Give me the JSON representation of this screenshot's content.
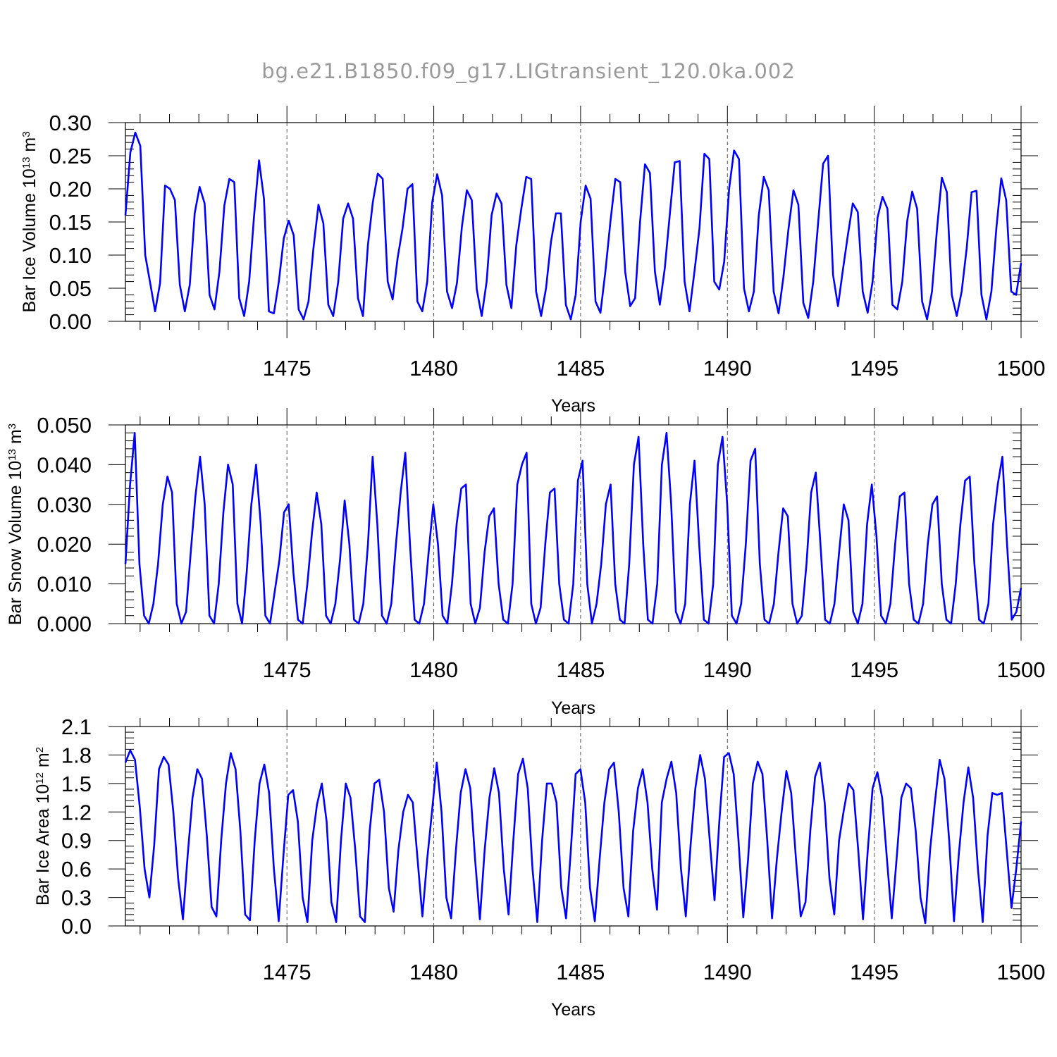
{
  "figure": {
    "title": "bg.e21.B1850.f09_g17.LIGtransient_120.0ka.002"
  },
  "chart_data": [
    {
      "type": "line",
      "title": "",
      "xlabel": "Years",
      "ylabel_text": "Bar Ice Volume 10",
      "ylabel_exp": "13",
      "ylabel_unit": " m",
      "ylabel_unit_exp": "3",
      "xlim": [
        1469.5,
        1500
      ],
      "ylim": [
        0.0,
        0.3
      ],
      "xticks": [
        1475,
        1480,
        1485,
        1490,
        1495,
        1500
      ],
      "xtick_labels": [
        "1475",
        "1480",
        "1485",
        "1490",
        "1495",
        "1500"
      ],
      "yticks": [
        0.0,
        0.05,
        0.1,
        0.15,
        0.2,
        0.25,
        0.3
      ],
      "ytick_labels": [
        "0.00",
        "0.05",
        "0.10",
        "0.15",
        "0.20",
        "0.25",
        "0.30"
      ],
      "grid": "vertical dashed at 5-year ticks",
      "series_color": "#0000ff",
      "series": [
        {
          "values": [
            0.16,
            0.255,
            0.285,
            0.265,
            0.1,
            0.058,
            0.015,
            0.058,
            0.205,
            0.2,
            0.183,
            0.055,
            0.015,
            0.055,
            0.163,
            0.203,
            0.178,
            0.04,
            0.018,
            0.075,
            0.175,
            0.215,
            0.21,
            0.035,
            0.008,
            0.06,
            0.16,
            0.243,
            0.185,
            0.015,
            0.012,
            0.06,
            0.125,
            0.152,
            0.13,
            0.018,
            0.003,
            0.03,
            0.11,
            0.176,
            0.148,
            0.025,
            0.008,
            0.06,
            0.155,
            0.178,
            0.155,
            0.035,
            0.008,
            0.115,
            0.18,
            0.223,
            0.215,
            0.06,
            0.033,
            0.095,
            0.14,
            0.2,
            0.207,
            0.03,
            0.015,
            0.06,
            0.18,
            0.222,
            0.19,
            0.045,
            0.02,
            0.058,
            0.143,
            0.198,
            0.183,
            0.048,
            0.008,
            0.06,
            0.16,
            0.193,
            0.178,
            0.055,
            0.02,
            0.115,
            0.17,
            0.218,
            0.215,
            0.045,
            0.008,
            0.05,
            0.12,
            0.163,
            0.163,
            0.025,
            0.003,
            0.04,
            0.15,
            0.205,
            0.185,
            0.03,
            0.013,
            0.075,
            0.15,
            0.215,
            0.21,
            0.075,
            0.023,
            0.035,
            0.15,
            0.237,
            0.224,
            0.075,
            0.025,
            0.08,
            0.16,
            0.24,
            0.242,
            0.06,
            0.015,
            0.075,
            0.14,
            0.253,
            0.245,
            0.06,
            0.048,
            0.09,
            0.2,
            0.258,
            0.245,
            0.05,
            0.015,
            0.045,
            0.16,
            0.218,
            0.198,
            0.045,
            0.012,
            0.068,
            0.14,
            0.198,
            0.176,
            0.028,
            0.005,
            0.06,
            0.15,
            0.238,
            0.25,
            0.07,
            0.023,
            0.078,
            0.13,
            0.178,
            0.165,
            0.045,
            0.013,
            0.06,
            0.157,
            0.188,
            0.17,
            0.025,
            0.018,
            0.06,
            0.152,
            0.196,
            0.17,
            0.03,
            0.003,
            0.045,
            0.138,
            0.217,
            0.195,
            0.04,
            0.008,
            0.045,
            0.11,
            0.195,
            0.197,
            0.04,
            0.003,
            0.045,
            0.14,
            0.216,
            0.183,
            0.045,
            0.04,
            0.088
          ]
        }
      ]
    },
    {
      "type": "line",
      "title": "",
      "xlabel": "Years",
      "ylabel_text": "Bar Snow Volume 10",
      "ylabel_exp": "13",
      "ylabel_unit": " m",
      "ylabel_unit_exp": "3",
      "xlim": [
        1469.5,
        1500
      ],
      "ylim": [
        0.0,
        0.05
      ],
      "xticks": [
        1475,
        1480,
        1485,
        1490,
        1495,
        1500
      ],
      "xtick_labels": [
        "1475",
        "1480",
        "1485",
        "1490",
        "1495",
        "1500"
      ],
      "yticks": [
        0.0,
        0.01,
        0.02,
        0.03,
        0.04,
        0.05
      ],
      "ytick_labels": [
        "0.000",
        "0.010",
        "0.020",
        "0.030",
        "0.040",
        "0.050"
      ],
      "grid": "vertical dashed at 5-year ticks",
      "series_color": "#0000ff",
      "series": [
        {
          "values": [
            0.015,
            0.035,
            0.048,
            0.015,
            0.002,
            0.0,
            0.005,
            0.015,
            0.03,
            0.037,
            0.033,
            0.005,
            0.0,
            0.003,
            0.018,
            0.032,
            0.042,
            0.03,
            0.002,
            0.0,
            0.01,
            0.028,
            0.04,
            0.035,
            0.005,
            0.0,
            0.013,
            0.03,
            0.04,
            0.025,
            0.002,
            0.0,
            0.008,
            0.016,
            0.028,
            0.03,
            0.013,
            0.001,
            0.0,
            0.01,
            0.023,
            0.033,
            0.025,
            0.002,
            0.0,
            0.005,
            0.016,
            0.031,
            0.02,
            0.001,
            0.0,
            0.005,
            0.02,
            0.042,
            0.025,
            0.002,
            0.0,
            0.005,
            0.02,
            0.033,
            0.043,
            0.02,
            0.001,
            0.0,
            0.005,
            0.018,
            0.03,
            0.02,
            0.002,
            0.0,
            0.01,
            0.025,
            0.034,
            0.035,
            0.005,
            0.0,
            0.004,
            0.018,
            0.027,
            0.029,
            0.01,
            0.001,
            0.0,
            0.01,
            0.035,
            0.04,
            0.043,
            0.005,
            0.0,
            0.004,
            0.02,
            0.033,
            0.034,
            0.01,
            0.001,
            0.0,
            0.01,
            0.036,
            0.041,
            0.01,
            0.0,
            0.005,
            0.015,
            0.03,
            0.035,
            0.01,
            0.001,
            0.0,
            0.015,
            0.04,
            0.047,
            0.02,
            0.001,
            0.0,
            0.01,
            0.04,
            0.048,
            0.03,
            0.003,
            0.0,
            0.005,
            0.03,
            0.041,
            0.02,
            0.001,
            0.0,
            0.01,
            0.04,
            0.047,
            0.03,
            0.002,
            0.0,
            0.005,
            0.02,
            0.041,
            0.044,
            0.015,
            0.001,
            0.0,
            0.005,
            0.018,
            0.029,
            0.027,
            0.005,
            0.0,
            0.002,
            0.015,
            0.033,
            0.038,
            0.02,
            0.001,
            0.0,
            0.005,
            0.018,
            0.03,
            0.026,
            0.003,
            0.0,
            0.005,
            0.025,
            0.035,
            0.022,
            0.002,
            0.0,
            0.005,
            0.02,
            0.032,
            0.033,
            0.01,
            0.001,
            0.0,
            0.005,
            0.02,
            0.03,
            0.032,
            0.01,
            0.001,
            0.0,
            0.01,
            0.025,
            0.036,
            0.037,
            0.015,
            0.001,
            0.0,
            0.005,
            0.025,
            0.035,
            0.042,
            0.02,
            0.001,
            0.003,
            0.009
          ]
        }
      ]
    },
    {
      "type": "line",
      "title": "",
      "xlabel": "Years",
      "ylabel_text": "Bar Ice Area 10",
      "ylabel_exp": "12",
      "ylabel_unit": " m",
      "ylabel_unit_exp": "2",
      "xlim": [
        1469.5,
        1500
      ],
      "ylim": [
        0.0,
        2.1
      ],
      "xticks": [
        1475,
        1480,
        1485,
        1490,
        1495,
        1500
      ],
      "xtick_labels": [
        "1475",
        "1480",
        "1485",
        "1490",
        "1495",
        "1500"
      ],
      "yticks": [
        0.0,
        0.3,
        0.6,
        0.9,
        1.2,
        1.5,
        1.8,
        2.1
      ],
      "ytick_labels": [
        "0.0",
        "0.3",
        "0.6",
        "0.9",
        "1.2",
        "1.5",
        "1.8",
        "2.1"
      ],
      "grid": "vertical dashed at 5-year ticks",
      "series_color": "#0000ff",
      "series": [
        {
          "values": [
            1.72,
            1.85,
            1.75,
            1.25,
            0.6,
            0.3,
            0.85,
            1.65,
            1.78,
            1.7,
            1.2,
            0.5,
            0.07,
            0.75,
            1.35,
            1.65,
            1.55,
            0.95,
            0.2,
            0.1,
            0.9,
            1.5,
            1.82,
            1.65,
            1.0,
            0.12,
            0.06,
            0.9,
            1.5,
            1.7,
            1.4,
            0.6,
            0.05,
            0.75,
            1.38,
            1.43,
            1.1,
            0.3,
            0.04,
            0.9,
            1.28,
            1.5,
            1.1,
            0.25,
            0.04,
            0.9,
            1.5,
            1.35,
            0.8,
            0.1,
            0.04,
            1.0,
            1.5,
            1.54,
            1.2,
            0.4,
            0.15,
            0.8,
            1.2,
            1.38,
            1.3,
            0.7,
            0.1,
            0.7,
            1.2,
            1.72,
            1.2,
            0.3,
            0.08,
            0.8,
            1.4,
            1.65,
            1.45,
            0.7,
            0.07,
            0.8,
            1.35,
            1.66,
            1.4,
            0.6,
            0.12,
            0.9,
            1.6,
            1.76,
            1.45,
            0.6,
            0.04,
            0.9,
            1.5,
            1.5,
            1.3,
            0.4,
            0.08,
            0.8,
            1.6,
            1.65,
            1.3,
            0.4,
            0.05,
            0.7,
            1.3,
            1.65,
            1.72,
            1.2,
            0.4,
            0.1,
            1.0,
            1.45,
            1.65,
            1.3,
            0.6,
            0.17,
            1.3,
            1.55,
            1.73,
            1.4,
            0.6,
            0.1,
            0.85,
            1.45,
            1.8,
            1.55,
            0.9,
            0.27,
            1.1,
            1.78,
            1.82,
            1.6,
            0.9,
            0.09,
            0.7,
            1.5,
            1.73,
            1.6,
            0.9,
            0.08,
            0.7,
            1.2,
            1.63,
            1.4,
            0.7,
            0.1,
            0.25,
            1.0,
            1.57,
            1.72,
            1.3,
            0.5,
            0.12,
            0.9,
            1.22,
            1.5,
            1.43,
            0.8,
            0.07,
            0.8,
            1.45,
            1.62,
            1.35,
            0.7,
            0.08,
            0.7,
            1.35,
            1.5,
            1.45,
            1.0,
            0.3,
            0.03,
            0.8,
            1.3,
            1.75,
            1.55,
            0.9,
            0.05,
            0.75,
            1.3,
            1.67,
            1.35,
            0.6,
            0.04,
            0.95,
            1.4,
            1.38,
            1.4,
            0.8,
            0.19,
            0.6,
            1.1
          ]
        }
      ]
    }
  ]
}
